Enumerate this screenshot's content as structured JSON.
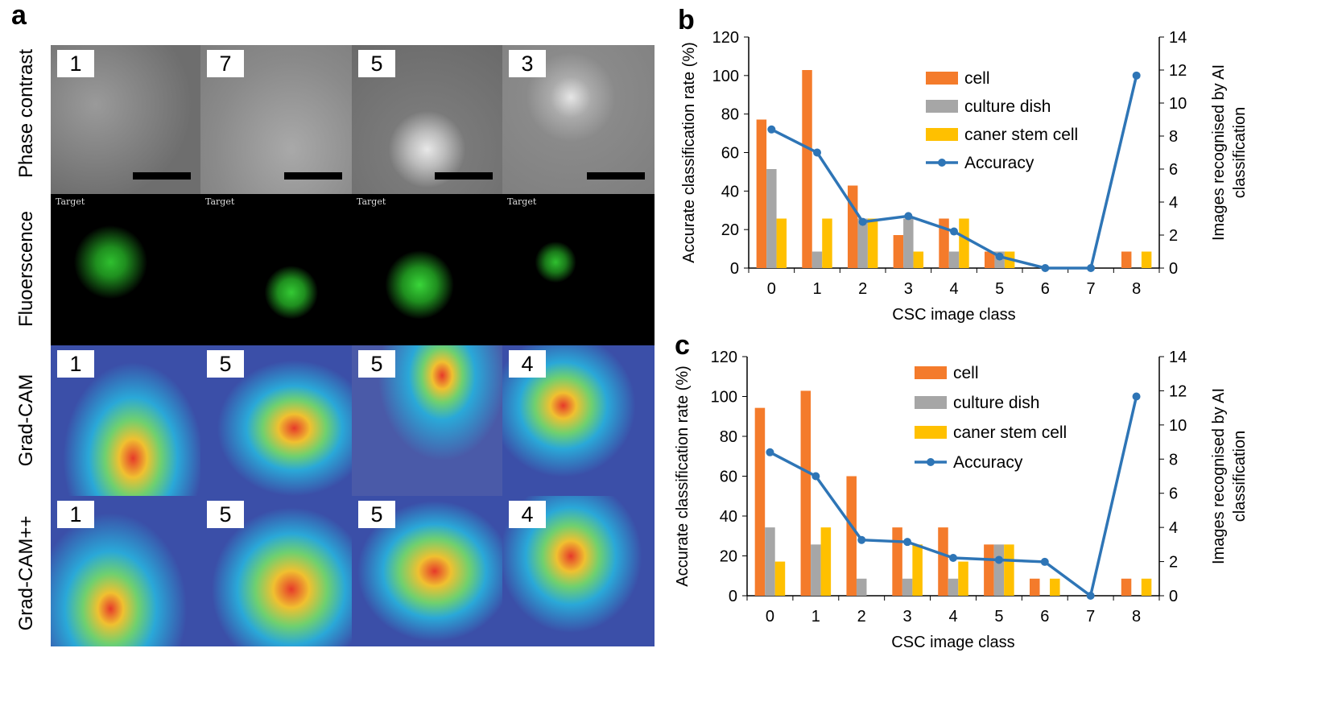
{
  "panel_a": {
    "letter": "a",
    "row_labels": [
      "Phase contrast",
      "Fluoerscence",
      "Grad-CAM",
      "Grad-CAM++"
    ],
    "phase_numbers": [
      "1",
      "7",
      "5",
      "3"
    ],
    "fluor_label": "Target",
    "gradcam_numbers": [
      "1",
      "5",
      "5",
      "4"
    ],
    "gradcampp_numbers": [
      "1",
      "5",
      "5",
      "4"
    ]
  },
  "chart_data": [
    {
      "panel": "b",
      "type": "bar",
      "categories": [
        "0",
        "1",
        "2",
        "3",
        "4",
        "5",
        "6",
        "7",
        "8"
      ],
      "series": [
        {
          "name": "cell",
          "axis": "right",
          "values": [
            9,
            12,
            5,
            2,
            3,
            1,
            0,
            0,
            1
          ]
        },
        {
          "name": "culture dish",
          "axis": "right",
          "values": [
            6,
            1,
            3,
            3,
            1,
            1,
            0,
            0,
            0
          ]
        },
        {
          "name": "caner stem cell",
          "axis": "right",
          "values": [
            3,
            3,
            3,
            1,
            3,
            1,
            0,
            0,
            1
          ]
        },
        {
          "name": "Accuracy",
          "type": "line",
          "axis": "left",
          "values": [
            72,
            60,
            24,
            27,
            19,
            6,
            0,
            0,
            100
          ]
        }
      ],
      "xlabel": "CSC image class",
      "ylabel": "Accurate classification rate  (%)",
      "y2label_line1": "Images recognised by AI",
      "y2label_line2": "classification",
      "ylim": [
        0,
        120
      ],
      "y2lim": [
        0,
        14
      ],
      "yticks": [
        "0",
        "20",
        "40",
        "60",
        "80",
        "100",
        "120"
      ],
      "y2ticks": [
        "0",
        "2",
        "4",
        "6",
        "8",
        "10",
        "12",
        "14"
      ],
      "legend": "upper-middle"
    },
    {
      "panel": "c",
      "type": "bar",
      "categories": [
        "0",
        "1",
        "2",
        "3",
        "4",
        "5",
        "6",
        "7",
        "8"
      ],
      "series": [
        {
          "name": "cell",
          "axis": "right",
          "values": [
            11,
            12,
            7,
            4,
            4,
            3,
            1,
            0,
            1
          ]
        },
        {
          "name": "culture dish",
          "axis": "right",
          "values": [
            4,
            3,
            1,
            1,
            1,
            3,
            0,
            0,
            0
          ]
        },
        {
          "name": "caner stem cell",
          "axis": "right",
          "values": [
            2,
            4,
            0,
            3,
            2,
            3,
            1,
            0,
            1
          ]
        },
        {
          "name": "Accuracy",
          "type": "line",
          "axis": "left",
          "values": [
            72,
            60,
            28,
            27,
            19,
            18,
            17,
            0,
            100
          ]
        }
      ],
      "xlabel": "CSC image class",
      "ylabel": "Accurate classification rate  (%)",
      "y2label_line1": "Images recognised by AI",
      "y2label_line2": "classification",
      "ylim": [
        0,
        120
      ],
      "y2lim": [
        0,
        14
      ],
      "yticks": [
        "0",
        "20",
        "40",
        "60",
        "80",
        "100",
        "120"
      ],
      "y2ticks": [
        "0",
        "2",
        "4",
        "6",
        "8",
        "10",
        "12",
        "14"
      ],
      "legend": "upper-middle"
    }
  ],
  "colors": {
    "cell": "#F47B2B",
    "culture dish": "#A6A6A6",
    "caner stem cell": "#FFC000",
    "Accuracy": "#2E75B6"
  }
}
